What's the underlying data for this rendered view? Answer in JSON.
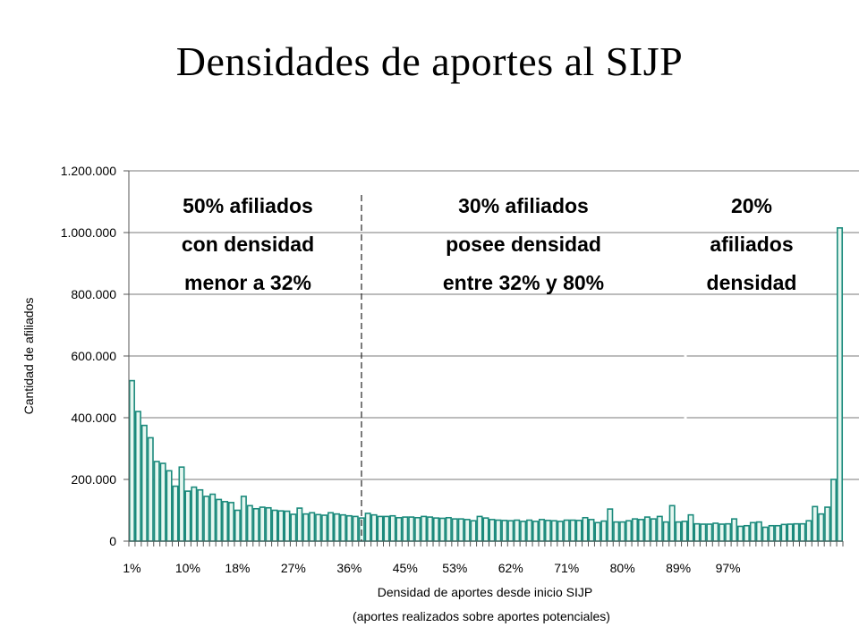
{
  "slide": {
    "title": "Densidades de aportes al SIJP"
  },
  "chart_data": {
    "type": "bar",
    "ylabel": "Cantidad de afiliados",
    "xlabel": "Densidad de aportes desde inicio SIJP",
    "xlabel_note": "(aportes realizados sobre aportes potenciales)",
    "ylim": [
      0,
      1200000
    ],
    "yticks": [
      "0",
      "200.000",
      "400.000",
      "600.000",
      "800.000",
      "1.000.000",
      "1.200.000"
    ],
    "ytick_values": [
      0,
      200000,
      400000,
      600000,
      800000,
      1000000,
      1200000
    ],
    "xtick_labels": [
      "1%",
      "10%",
      "18%",
      "27%",
      "36%",
      "45%",
      "53%",
      "62%",
      "71%",
      "80%",
      "89%",
      "97%"
    ],
    "grid": true,
    "bar_fill": "#e6f7f0",
    "bar_stroke": "#1b8a7c",
    "x_range": "1% - 100%",
    "values": [
      520000,
      420000,
      375000,
      335000,
      258000,
      252000,
      228000,
      178000,
      240000,
      162000,
      175000,
      166000,
      145000,
      152000,
      135000,
      128000,
      125000,
      100000,
      145000,
      115000,
      105000,
      110000,
      108000,
      100000,
      98000,
      97000,
      87000,
      107000,
      88000,
      92000,
      86000,
      84000,
      92000,
      88000,
      85000,
      82000,
      80000,
      75000,
      90000,
      85000,
      80000,
      80000,
      82000,
      76000,
      78000,
      78000,
      76000,
      80000,
      78000,
      75000,
      74000,
      76000,
      72000,
      72000,
      70000,
      66000,
      80000,
      75000,
      70000,
      68000,
      67000,
      66000,
      68000,
      64000,
      68000,
      64000,
      70000,
      67000,
      66000,
      64000,
      68000,
      68000,
      67000,
      76000,
      70000,
      60000,
      65000,
      104000,
      62000,
      62000,
      66000,
      72000,
      70000,
      78000,
      72000,
      80000,
      62000,
      115000,
      62000,
      64000,
      85000,
      56000,
      55000,
      55000,
      58000,
      55000,
      56000,
      72000,
      48000,
      50000,
      60000,
      62000,
      45000,
      50000,
      50000,
      54000,
      55000,
      56000,
      56000,
      66000,
      112000,
      88000,
      110000,
      200000,
      1015000
    ],
    "separators_at_pct": [
      32,
      80
    ],
    "annotations": [
      {
        "lines": [
          "50% afiliados",
          "con  densidad",
          "menor a 32%"
        ]
      },
      {
        "lines": [
          "30% afiliados",
          "posee densidad",
          "entre 32% y 80%"
        ]
      },
      {
        "lines": [
          "20%",
          "afiliados",
          "densidad"
        ]
      }
    ]
  }
}
